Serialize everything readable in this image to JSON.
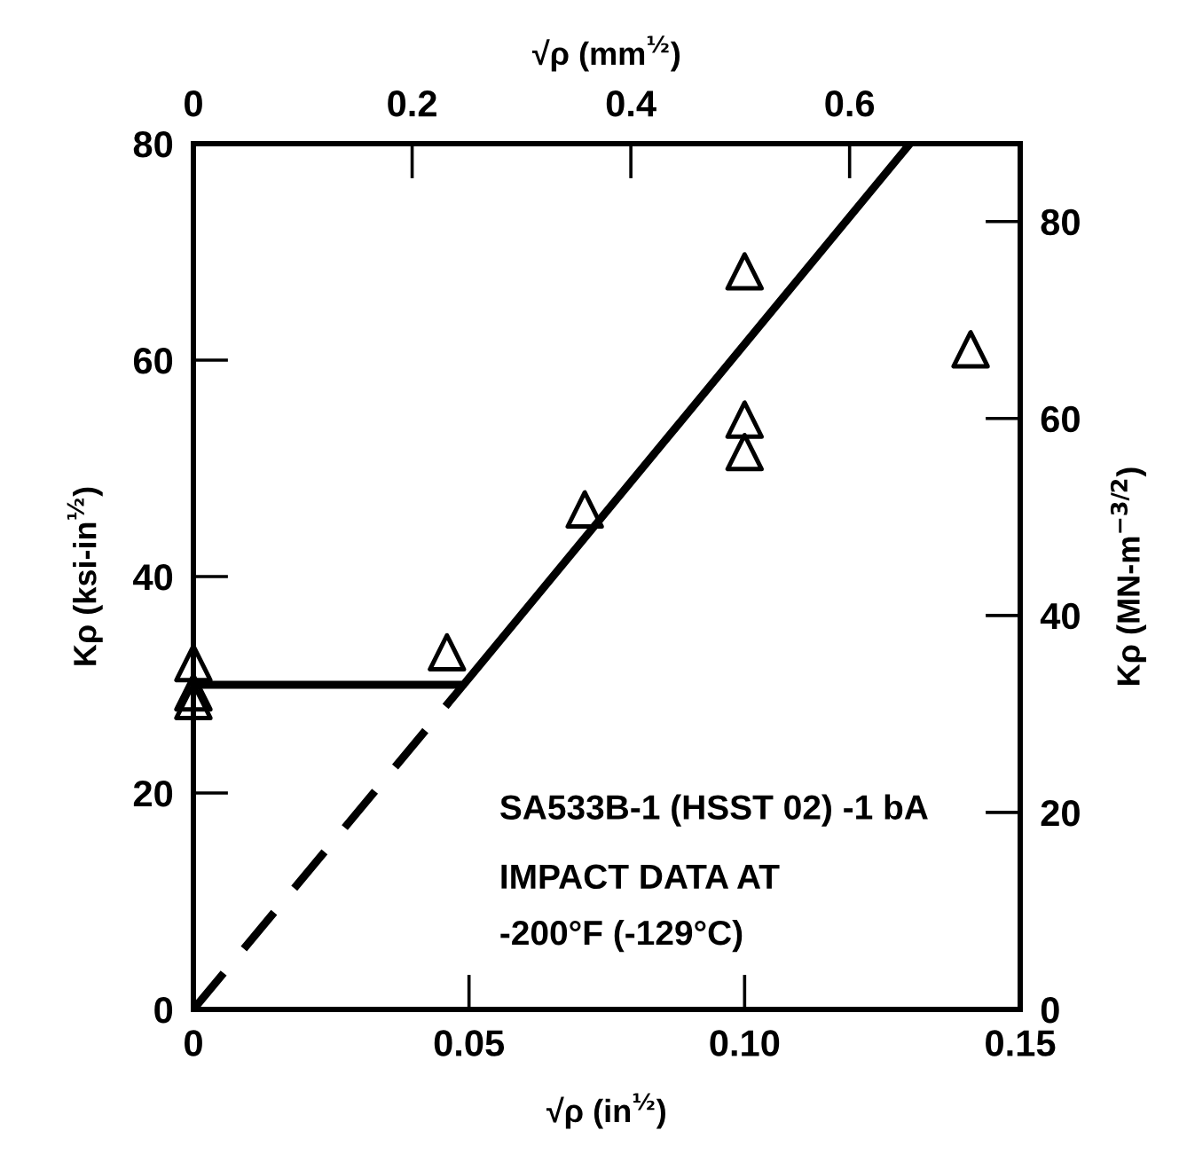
{
  "chart_data": {
    "type": "scatter",
    "xlabel": "√ρ (in$^{½}$)",
    "ylabel": "Kρ (ksi-in$^{½}$)",
    "y2label": "Kρ (MN-m$^{−3/2}$)",
    "x2label": "√ρ (mm$^{½}$)",
    "xlim": [
      0,
      0.15
    ],
    "xticks": [
      0,
      0.05,
      {
        "value": 0.1,
        "label": "0.10"
      },
      0.15
    ],
    "ylim": [
      0,
      80
    ],
    "yticks": [
      0,
      20,
      40,
      60,
      80
    ],
    "y2lim": [
      0,
      87.9
    ],
    "y2ticks": [
      0,
      20,
      40,
      60,
      80
    ],
    "x2lim": [
      0,
      0.756
    ],
    "x2ticks": [
      0,
      0.2,
      0.4,
      0.6
    ],
    "grid": false,
    "marker": "triangle",
    "series": [
      {
        "color": "#000000",
        "x": [
          0,
          0,
          0,
          0.046,
          0.071,
          0.1,
          0.1,
          0.1,
          0.141
        ],
        "values": [
          32,
          29.3,
          28.5,
          33,
          46.2,
          68.2,
          54.5,
          51.5,
          61
        ]
      },
      {
        "type": "line",
        "color": "#000000",
        "marker": "none",
        "line_style": "solid",
        "x": [
          0,
          0.049,
          0.13
        ],
        "values": [
          30,
          30,
          80
        ]
      },
      {
        "type": "line",
        "color": "#000000",
        "marker": "none",
        "line_style": "dashed",
        "x": [
          0,
          0.049
        ],
        "values": [
          0,
          30
        ]
      }
    ],
    "annotations": [
      "SA533B-1 (HSST 02) -1 bA",
      "IMPACT DATA AT",
      "-200°F (-129°C)"
    ]
  }
}
